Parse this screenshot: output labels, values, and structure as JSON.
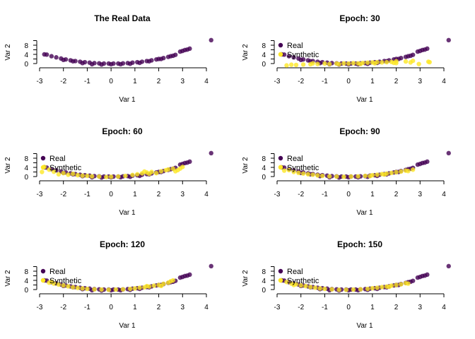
{
  "chart_data": {
    "type": "scatter",
    "layout": "3 rows x 2 columns",
    "colors": {
      "real": "#440154",
      "synthetic": "#FDE725"
    },
    "xlabel": "Var 1",
    "ylabel": "Var 2",
    "xticks": [
      -3,
      -2,
      -1,
      0,
      1,
      2,
      3,
      4
    ],
    "yticks": [
      0,
      4,
      8
    ],
    "yminor_ticks": [
      0,
      2,
      4,
      6,
      8,
      10
    ],
    "xlim": [
      -3,
      4
    ],
    "ylim": [
      -1,
      10
    ],
    "grid": false,
    "legend": {
      "placement": "top-left",
      "labels": [
        "Real",
        "Synthetic"
      ]
    },
    "real": [
      [
        -2.8,
        4
      ],
      [
        -2.7,
        3.9
      ],
      [
        -2.5,
        3.2
      ],
      [
        -2.3,
        2.7
      ],
      [
        -2.1,
        2.2
      ],
      [
        -1.9,
        1.8
      ],
      [
        -1.7,
        1.4
      ],
      [
        -1.5,
        1.1
      ],
      [
        -1.3,
        0.8
      ],
      [
        -1.1,
        0.6
      ],
      [
        -0.9,
        0.4
      ],
      [
        -0.7,
        0.2
      ],
      [
        -0.5,
        0.1
      ],
      [
        -0.3,
        0
      ],
      [
        -0.1,
        0
      ],
      [
        0.1,
        0
      ],
      [
        0.3,
        0
      ],
      [
        0.5,
        0.1
      ],
      [
        0.7,
        0.2
      ],
      [
        0.9,
        0.4
      ],
      [
        1.1,
        0.6
      ],
      [
        1.3,
        0.8
      ],
      [
        1.5,
        1.1
      ],
      [
        1.7,
        1.4
      ],
      [
        1.9,
        1.8
      ],
      [
        2.0,
        2.0
      ],
      [
        2.2,
        2.4
      ],
      [
        2.4,
        2.9
      ],
      [
        2.5,
        3.2
      ],
      [
        2.6,
        3.4
      ],
      [
        2.7,
        3.8
      ],
      [
        2.9,
        5.2
      ],
      [
        3.0,
        5.5
      ],
      [
        3.1,
        5.9
      ],
      [
        3.2,
        6.1
      ],
      [
        3.3,
        6.5
      ],
      [
        4.2,
        10.2
      ],
      [
        -0.8,
        -0.3
      ],
      [
        -0.4,
        -0.4
      ],
      [
        0,
        -0.3
      ],
      [
        0.4,
        -0.3
      ],
      [
        0.8,
        -0.1
      ],
      [
        -1.2,
        0.2
      ],
      [
        1.2,
        0.3
      ],
      [
        -2.0,
        1.6
      ],
      [
        -1.6,
        1.0
      ],
      [
        1.6,
        1.0
      ],
      [
        2.1,
        2.0
      ]
    ],
    "panels": [
      {
        "title": "The Real Data",
        "legend": false,
        "synthetic": []
      },
      {
        "title": "Epoch: 30",
        "legend": true,
        "synthetic": [
          [
            -2.85,
            4
          ],
          [
            -2.6,
            -0.8
          ],
          [
            -2.4,
            -0.5
          ],
          [
            -2.2,
            -0.6
          ],
          [
            -1.9,
            -0.4
          ],
          [
            -1.6,
            -0.3
          ],
          [
            -1.3,
            -0.2
          ],
          [
            -1.0,
            0
          ],
          [
            -0.8,
            -0.2
          ],
          [
            -0.5,
            0
          ],
          [
            -0.2,
            0.1
          ],
          [
            0,
            0
          ],
          [
            0.2,
            0.2
          ],
          [
            0.4,
            0.1
          ],
          [
            0.6,
            0.3
          ],
          [
            0.8,
            0.4
          ],
          [
            1.0,
            0.5
          ],
          [
            1.2,
            0.6
          ],
          [
            1.4,
            0.5
          ],
          [
            1.6,
            0.6
          ],
          [
            1.8,
            0.7
          ],
          [
            2.0,
            1.0
          ],
          [
            2.0,
            0.2
          ],
          [
            2.4,
            0.9
          ],
          [
            2.6,
            0.5
          ],
          [
            2.7,
            1.2
          ],
          [
            2.95,
            -0.2
          ],
          [
            3.35,
            0.8
          ],
          [
            3.4,
            0.6
          ],
          [
            1.9,
            0.3
          ],
          [
            -0.4,
            -0.3
          ],
          [
            0.5,
            -0.2
          ],
          [
            -1.5,
            0.1
          ],
          [
            1.1,
            0.1
          ]
        ]
      },
      {
        "title": "Epoch: 60",
        "legend": true,
        "synthetic": [
          [
            -2.9,
            2.0
          ],
          [
            -2.8,
            4.2
          ],
          [
            -2.6,
            3.0
          ],
          [
            -2.4,
            2.1
          ],
          [
            -2.2,
            1.0
          ],
          [
            -2.0,
            1.5
          ],
          [
            -1.8,
            0.8
          ],
          [
            -1.6,
            1.2
          ],
          [
            -1.4,
            0.6
          ],
          [
            -1.2,
            0.4
          ],
          [
            -1.0,
            0.3
          ],
          [
            -0.8,
            0.1
          ],
          [
            -0.5,
            0
          ],
          [
            -0.2,
            -0.2
          ],
          [
            0,
            -0.1
          ],
          [
            0.3,
            0
          ],
          [
            0.6,
            0.3
          ],
          [
            0.9,
            0.7
          ],
          [
            1.1,
            1.0
          ],
          [
            1.3,
            1.4
          ],
          [
            1.5,
            1.8
          ],
          [
            1.6,
            1.2
          ],
          [
            1.7,
            2.0
          ],
          [
            1.9,
            1.5
          ],
          [
            2.1,
            2.3
          ],
          [
            2.3,
            2.8
          ],
          [
            2.4,
            3.1
          ],
          [
            2.6,
            3.4
          ],
          [
            2.7,
            2.3
          ],
          [
            2.9,
            3.5
          ],
          [
            3.0,
            4.2
          ],
          [
            2.8,
            2.8
          ],
          [
            1.4,
            2.2
          ]
        ]
      },
      {
        "title": "Epoch: 90",
        "legend": true,
        "synthetic": [
          [
            -2.85,
            4.1
          ],
          [
            -2.7,
            2.6
          ],
          [
            -2.5,
            2.8
          ],
          [
            -2.3,
            2.0
          ],
          [
            -2.1,
            1.6
          ],
          [
            -1.9,
            1.3
          ],
          [
            -1.7,
            1.0
          ],
          [
            -1.5,
            0.8
          ],
          [
            -1.3,
            0.5
          ],
          [
            -1.1,
            0.3
          ],
          [
            -0.8,
            0.1
          ],
          [
            -0.5,
            0
          ],
          [
            -0.2,
            -0.1
          ],
          [
            0.1,
            0
          ],
          [
            0.4,
            0.1
          ],
          [
            0.7,
            0.3
          ],
          [
            1.0,
            0.6
          ],
          [
            1.2,
            0.8
          ],
          [
            1.4,
            1.1
          ],
          [
            1.6,
            1.3
          ],
          [
            1.8,
            1.6
          ],
          [
            2.0,
            1.9
          ],
          [
            2.2,
            2.2
          ],
          [
            2.4,
            2.6
          ],
          [
            2.5,
            2.4
          ],
          [
            2.7,
            3.0
          ],
          [
            1.5,
            0.9
          ],
          [
            0.9,
            0.2
          ]
        ]
      },
      {
        "title": "Epoch: 120",
        "legend": true,
        "synthetic": [
          [
            -2.85,
            4.0
          ],
          [
            -2.6,
            3.0
          ],
          [
            -2.4,
            2.6
          ],
          [
            -2.2,
            2.2
          ],
          [
            -2.0,
            1.8
          ],
          [
            -1.8,
            1.4
          ],
          [
            -1.6,
            1.0
          ],
          [
            -1.4,
            0.7
          ],
          [
            -1.2,
            0.5
          ],
          [
            -1.0,
            0.3
          ],
          [
            -0.7,
            0.1
          ],
          [
            -0.4,
            0
          ],
          [
            -0.1,
            -0.1
          ],
          [
            0.2,
            0
          ],
          [
            0.5,
            0.1
          ],
          [
            0.8,
            0.3
          ],
          [
            1.0,
            0.5
          ],
          [
            1.2,
            0.8
          ],
          [
            1.4,
            1.0
          ],
          [
            1.6,
            1.3
          ],
          [
            1.8,
            1.7
          ],
          [
            2.0,
            2.0
          ],
          [
            2.2,
            2.5
          ],
          [
            2.4,
            3.0
          ],
          [
            2.5,
            3.6
          ],
          [
            2.6,
            4.0
          ],
          [
            2.1,
            1.6
          ],
          [
            1.5,
            1.5
          ],
          [
            -2.5,
            3.4
          ]
        ]
      },
      {
        "title": "Epoch: 150",
        "legend": true,
        "synthetic": [
          [
            -2.85,
            4.0
          ],
          [
            -2.6,
            3.3
          ],
          [
            -2.4,
            2.6
          ],
          [
            -2.2,
            2.3
          ],
          [
            -2.0,
            1.8
          ],
          [
            -1.8,
            1.5
          ],
          [
            -1.6,
            1.1
          ],
          [
            -1.4,
            0.8
          ],
          [
            -1.2,
            0.5
          ],
          [
            -1.0,
            0.3
          ],
          [
            -0.7,
            0.1
          ],
          [
            -0.4,
            -0.1
          ],
          [
            -0.1,
            -0.1
          ],
          [
            0.2,
            0
          ],
          [
            0.5,
            0.1
          ],
          [
            0.8,
            0.3
          ],
          [
            1.0,
            0.6
          ],
          [
            1.2,
            0.8
          ],
          [
            1.4,
            1.1
          ],
          [
            1.6,
            1.3
          ],
          [
            1.8,
            1.7
          ],
          [
            2.0,
            2.0
          ],
          [
            2.2,
            2.3
          ],
          [
            2.4,
            2.8
          ],
          [
            2.5,
            2.6
          ],
          [
            -2.3,
            2.0
          ],
          [
            1.7,
            1.2
          ]
        ]
      }
    ]
  }
}
